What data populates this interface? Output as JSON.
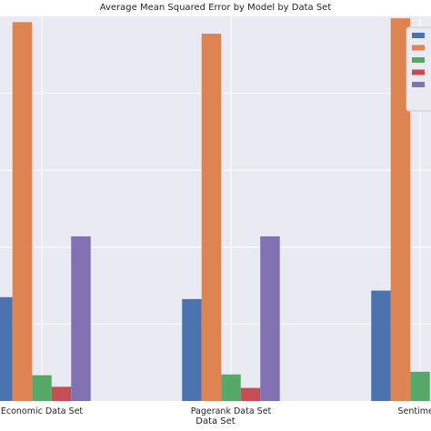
{
  "chart_data": {
    "type": "bar",
    "title": "Average Mean Squared Error by Model by Data Set",
    "xlabel": "Data Set",
    "ylabel": "",
    "categories": [
      "Economic Data Set",
      "Pagerank Data Set",
      "Sentiment"
    ],
    "ylim": [
      0,
      1.0
    ],
    "grid": true,
    "legend_placement": "top-right",
    "series": [
      {
        "color": "#4c72b0",
        "values": [
          0.27,
          0.265,
          0.287
        ]
      },
      {
        "color": "#dd8452",
        "values": [
          0.985,
          0.955,
          0.995
        ]
      },
      {
        "color": "#55a868",
        "values": [
          0.067,
          0.069,
          0.076
        ]
      },
      {
        "color": "#c44e52",
        "values": [
          0.037,
          0.034,
          0.0
        ]
      },
      {
        "color": "#8172b3",
        "values": [
          0.428,
          0.428,
          0.0
        ]
      }
    ]
  }
}
